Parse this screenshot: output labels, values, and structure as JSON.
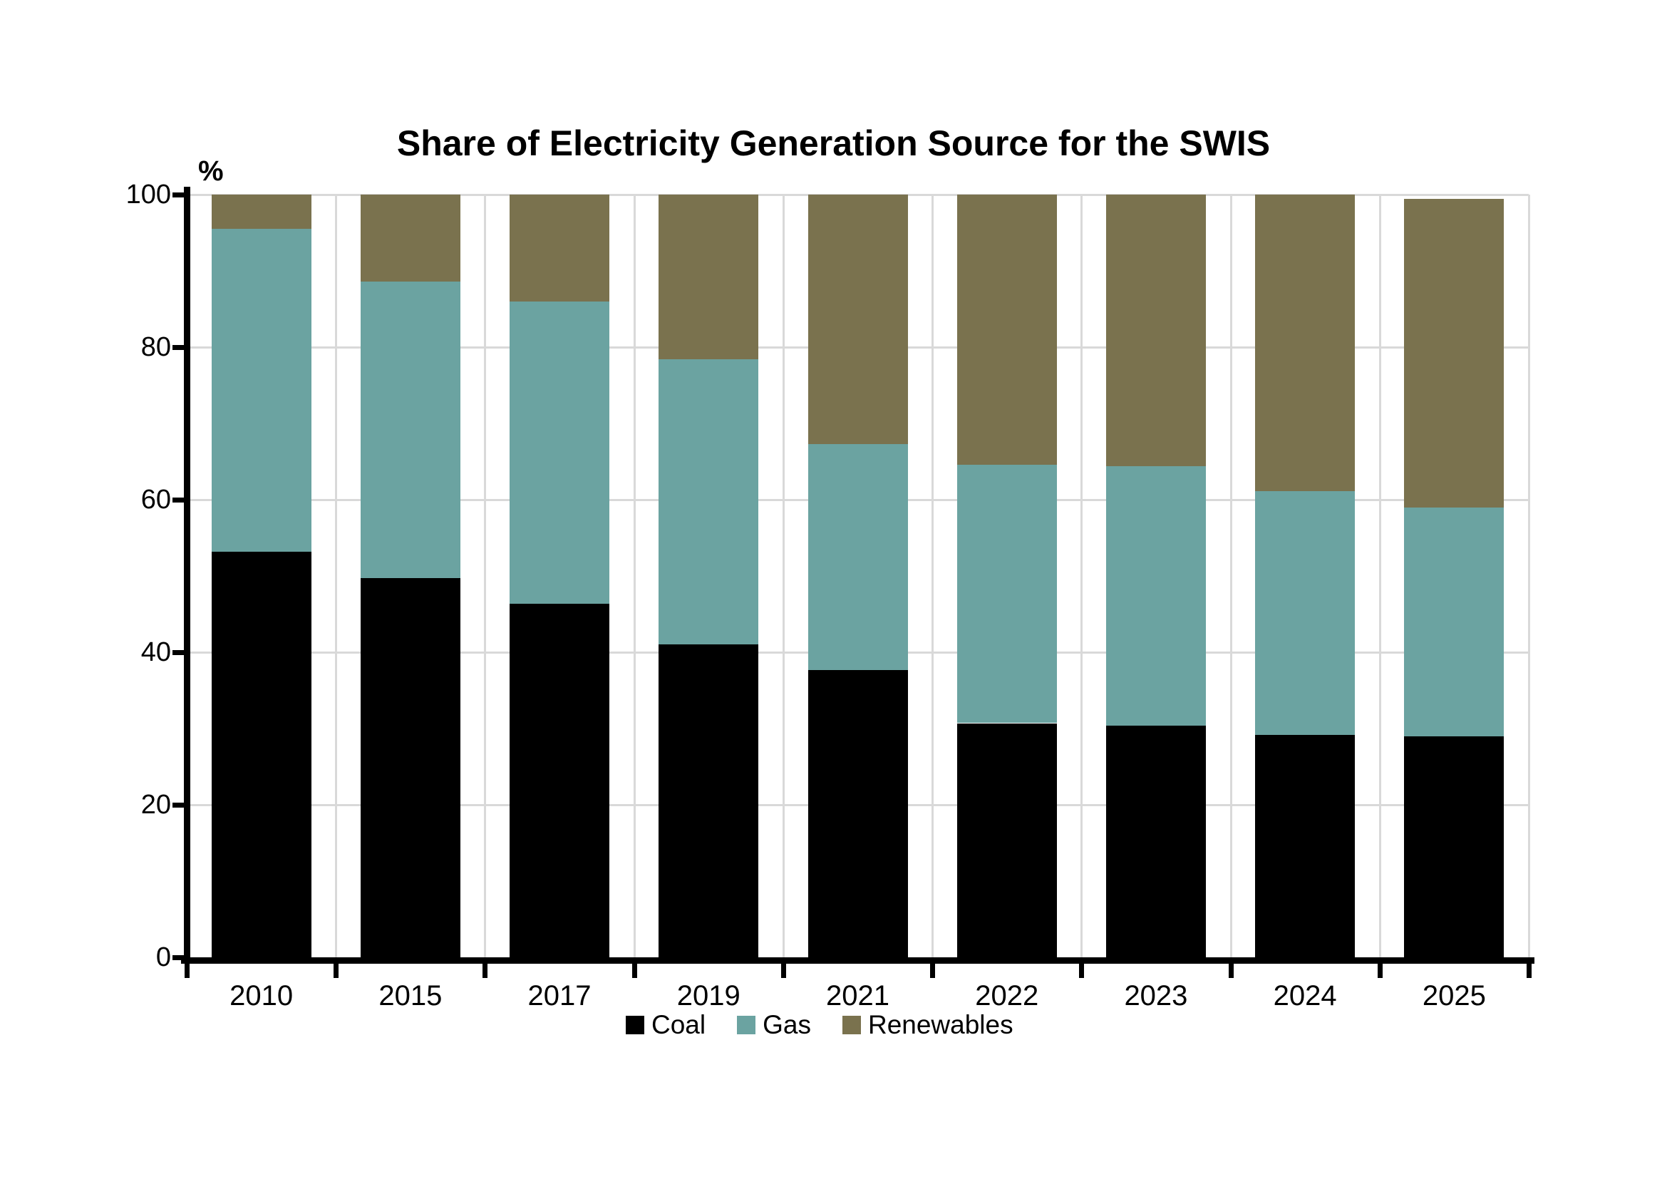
{
  "chart_data": {
    "type": "bar",
    "stacked": true,
    "title": "Share of Electricity Generation Source for the SWIS",
    "unit_label": "%",
    "categories": [
      "2010",
      "2015",
      "2017",
      "2019",
      "2021",
      "2022",
      "2023",
      "2024",
      "2025"
    ],
    "series": [
      {
        "name": "Coal",
        "color": "#000000",
        "values": [
          53.2,
          49.7,
          46.4,
          41.0,
          37.7,
          30.7,
          30.4,
          29.2,
          29.0
        ]
      },
      {
        "name": "Gas",
        "color": "#6BA3A1",
        "values": [
          42.3,
          38.9,
          39.6,
          37.4,
          29.6,
          33.9,
          34.0,
          31.9,
          30.0
        ]
      },
      {
        "name": "Renewables",
        "color": "#7A724E",
        "values": [
          4.5,
          11.4,
          14.0,
          21.6,
          32.7,
          35.4,
          35.6,
          38.9,
          40.4
        ]
      }
    ],
    "ylim": [
      0,
      100
    ],
    "yticks": [
      0,
      20,
      40,
      60,
      80,
      100
    ],
    "grid": true,
    "legend_position": "bottom",
    "gridline_color": "#D9D9D9",
    "axis_color": "#000000"
  }
}
